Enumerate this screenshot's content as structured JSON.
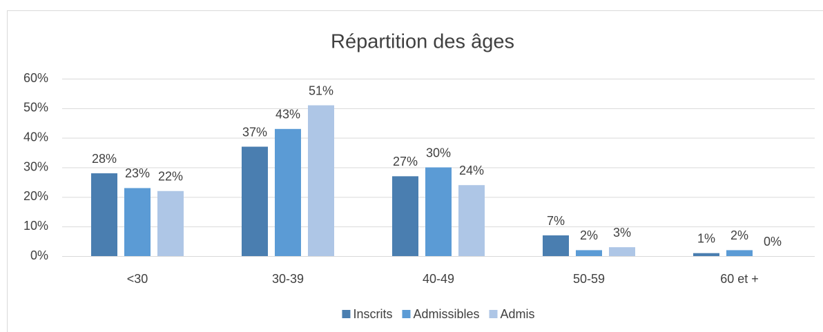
{
  "chart_data": {
    "type": "bar",
    "title": "Répartition des âges",
    "categories": [
      "<30",
      "30-39",
      "40-49",
      "50-59",
      "60 et +"
    ],
    "series": [
      {
        "name": "Inscrits",
        "color": "#4a7eb0",
        "values": [
          28,
          37,
          27,
          7,
          1
        ],
        "value_labels": [
          "28%",
          "37%",
          "27%",
          "7%",
          "1%"
        ]
      },
      {
        "name": "Admissibles",
        "color": "#5b9bd5",
        "values": [
          23,
          43,
          30,
          2,
          2
        ],
        "value_labels": [
          "23%",
          "43%",
          "30%",
          "2%",
          "2%"
        ]
      },
      {
        "name": "Admis",
        "color": "#aec6e6",
        "values": [
          22,
          51,
          24,
          3,
          0
        ],
        "value_labels": [
          "22%",
          "51%",
          "24%",
          "3%",
          "0%"
        ]
      }
    ],
    "ylim": [
      0,
      60
    ],
    "yticks": [
      {
        "value": 0,
        "label": "0%"
      },
      {
        "value": 10,
        "label": "10%"
      },
      {
        "value": 20,
        "label": "20%"
      },
      {
        "value": 30,
        "label": "30%"
      },
      {
        "value": 40,
        "label": "40%"
      },
      {
        "value": 50,
        "label": "50%"
      },
      {
        "value": 60,
        "label": "60%"
      }
    ],
    "grid": true,
    "legend": "bottom"
  }
}
